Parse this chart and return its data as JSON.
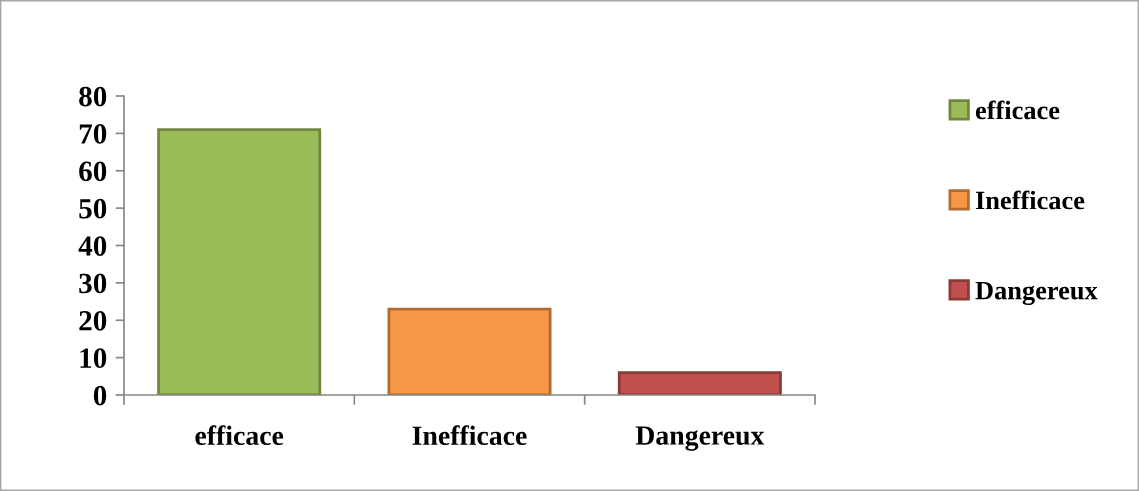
{
  "chart_data": {
    "type": "bar",
    "categories": [
      "efficace",
      "Inefficace",
      "Dangereux"
    ],
    "series": [
      {
        "name": "efficace",
        "color": "#9bbb59",
        "values": [
          71,
          null,
          null
        ]
      },
      {
        "name": "Inefficace",
        "color": "#f79646",
        "values": [
          null,
          23,
          null
        ]
      },
      {
        "name": "Dangereux",
        "color": "#c0504d",
        "values": [
          null,
          null,
          6
        ]
      }
    ],
    "ylim": [
      0,
      80
    ],
    "yticks": [
      0,
      10,
      20,
      30,
      40,
      50,
      60,
      70,
      80
    ],
    "grid": false,
    "legend": "right"
  }
}
